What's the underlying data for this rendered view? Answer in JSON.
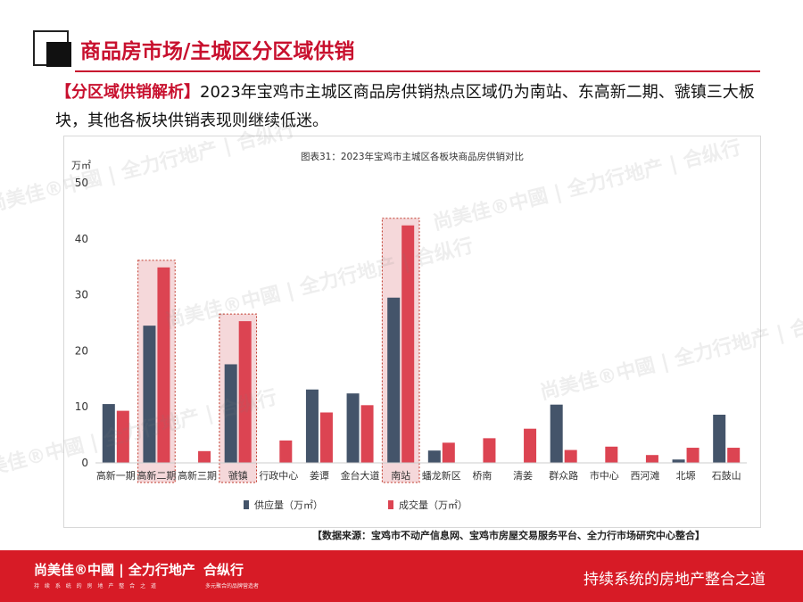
{
  "header": {
    "title": "商品房市场/主城区分区域供销",
    "intro_tag": "【分区域供销解析】",
    "intro_text": "2023年宝鸡市主城区商品房供销热点区域仍为南站、东高新二期、虢镇三大板块，其他各板块供销表现则继续低迷。"
  },
  "chart_data": {
    "type": "bar",
    "title": "图表31：2023年宝鸡市主城区各板块商品房供销对比",
    "ylabel": "万㎡",
    "xlabel": "",
    "ylim": [
      0,
      50
    ],
    "yticks": [
      0,
      10,
      20,
      30,
      40,
      50
    ],
    "grid": false,
    "legend_position": "bottom",
    "categories": [
      "高新一期",
      "高新二期",
      "高新三期",
      "虢镇",
      "行政中心",
      "姜谭",
      "金台大道",
      "南站",
      "蟠龙新区",
      "桥南",
      "清姜",
      "群众路",
      "市中心",
      "西河滩",
      "北塬",
      "石鼓山"
    ],
    "series": [
      {
        "name": "供应量（万㎡）",
        "color": "#44546a",
        "values": [
          10.5,
          24.5,
          0,
          17.6,
          0,
          13.1,
          12.4,
          29.5,
          2.2,
          0,
          0,
          10.4,
          0,
          0,
          0.6,
          8.6
        ]
      },
      {
        "name": "成交量（万㎡）",
        "color": "#dc4452",
        "values": [
          9.3,
          34.9,
          2.1,
          25.3,
          4.0,
          9.0,
          10.3,
          42.4,
          3.6,
          4.4,
          6.1,
          2.3,
          2.9,
          1.4,
          2.7,
          2.7
        ]
      }
    ],
    "highlights": [
      "高新二期",
      "虢镇",
      "南站"
    ]
  },
  "source_note": "【数据来源：宝鸡市不动产信息网、宝鸡市房屋交易服务平台、全力行市场研究中心整合】",
  "footer": {
    "brand": "尚美佳®中國 | 全力行地产",
    "brand_sub": "持 续 系 统 的 房 地 产 整 合 之 道",
    "partner": "合纵行",
    "partner_sub": "多元聚合的品牌营造者",
    "slogan": "持续系统的房地产整合之道"
  },
  "watermark": "尚美佳®中國 | 全力行地产 | 合纵行"
}
